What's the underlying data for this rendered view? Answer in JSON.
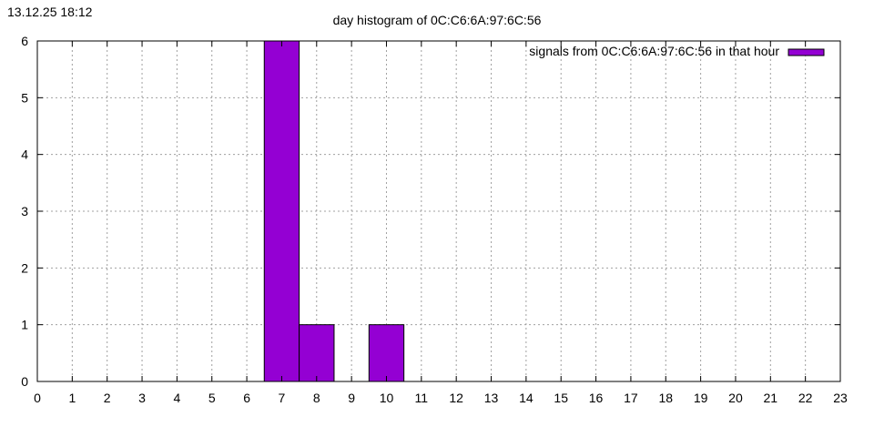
{
  "timestamp": "13.12.25 18:12",
  "chart_data": {
    "type": "bar",
    "title": "day histogram of 0C:C6:6A:97:6C:56",
    "xlabel": "",
    "ylabel": "",
    "xlim": [
      0,
      23
    ],
    "ylim": [
      0,
      6
    ],
    "xticks": [
      "0",
      "1",
      "2",
      "3",
      "4",
      "5",
      "6",
      "7",
      "8",
      "9",
      "10",
      "11",
      "12",
      "13",
      "14",
      "15",
      "16",
      "17",
      "18",
      "19",
      "20",
      "21",
      "22",
      "23"
    ],
    "yticks": [
      "0",
      "1",
      "2",
      "3",
      "4",
      "5",
      "6"
    ],
    "grid": true,
    "legend_position": "top-right",
    "series": [
      {
        "name": "signals from 0C:C6:6A:97:6C:56 in that hour",
        "color": "#9400D3",
        "x": [
          7,
          8,
          10
        ],
        "values": [
          6,
          1,
          1
        ]
      }
    ]
  }
}
